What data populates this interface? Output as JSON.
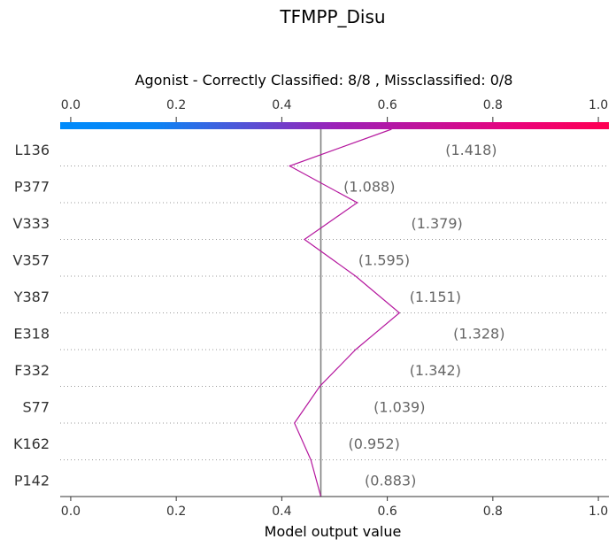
{
  "chart_data": {
    "type": "line",
    "title": "TFMPP_Disu",
    "subtitle": "Agonist - Correctly Classified: 8/8 , Missclassified: 0/8",
    "xlabel": "Model output value",
    "xlim": [
      -0.02,
      1.02
    ],
    "ticks": [
      "0.0",
      "0.2",
      "0.4",
      "0.6",
      "0.8",
      "1.0"
    ],
    "tick_values": [
      0.0,
      0.2,
      0.4,
      0.6,
      0.8,
      1.0
    ],
    "base_value": 0.474,
    "colorbar": {
      "from": "#008bfb",
      "to": "#ff0052",
      "mid": "#9b21b8"
    },
    "line_color": "#b5179e",
    "features": [
      {
        "name": "L136",
        "value_label": "(1.418)",
        "cum": 0.608
      },
      {
        "name": "P377",
        "value_label": "(1.088)",
        "cum": 0.415
      },
      {
        "name": "V333",
        "value_label": "(1.379)",
        "cum": 0.543
      },
      {
        "name": "V357",
        "value_label": "(1.595)",
        "cum": 0.443
      },
      {
        "name": "Y387",
        "value_label": "(1.151)",
        "cum": 0.54
      },
      {
        "name": "E318",
        "value_label": "(1.328)",
        "cum": 0.623
      },
      {
        "name": "F332",
        "value_label": "(1.342)",
        "cum": 0.54
      },
      {
        "name": "S77",
        "value_label": "(1.039)",
        "cum": 0.472
      },
      {
        "name": "K162",
        "value_label": "(0.952)",
        "cum": 0.424
      },
      {
        "name": "P142",
        "value_label": "(0.883)",
        "cum": 0.455
      }
    ],
    "end_value": 0.474,
    "grid": "dotted-rows",
    "legend": "none"
  }
}
